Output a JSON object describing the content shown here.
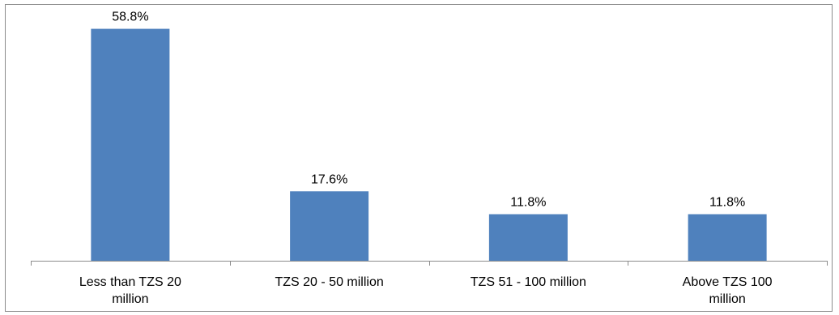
{
  "chart_data": {
    "type": "bar",
    "categories": [
      [
        "Less than TZS 20",
        "million"
      ],
      [
        "TZS 20 - 50 million"
      ],
      [
        "TZS 51 - 100 million"
      ],
      [
        "Above TZS 100",
        "million"
      ]
    ],
    "values": [
      58.8,
      17.6,
      11.8,
      11.8
    ],
    "data_labels": [
      "58.8%",
      "17.6%",
      "11.8%",
      "11.8%"
    ],
    "title": "",
    "xlabel": "",
    "ylabel": "",
    "ylim": [
      0,
      62
    ],
    "grid": false,
    "legend": "none",
    "bar_color": "#4f81bd"
  }
}
